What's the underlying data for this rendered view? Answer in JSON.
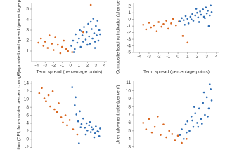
{
  "chart_data": [
    {
      "type": "scatter",
      "x_title": "Term spread (percentage points)",
      "y_title": "Corporate bond spread (percentage points)",
      "xlim": [
        -4.6,
        4.3
      ],
      "ylim": [
        0,
        5.6
      ],
      "xticks": [
        -4,
        -3,
        -2,
        -1,
        0,
        1,
        2,
        3,
        4
      ],
      "yticks": [
        1,
        2,
        3,
        4,
        5
      ],
      "series": [
        {
          "color": "#d9661f",
          "x": [
            -3.8,
            -3.5,
            -3.2,
            -3.0,
            -2.7,
            -2.5,
            -2.2,
            -2.0,
            -1.8,
            -1.5,
            -1.2,
            -1.0,
            -0.8,
            -0.5,
            -0.3,
            0.2,
            1.5,
            2.4
          ],
          "y": [
            1.8,
            2.2,
            1.5,
            1.9,
            1.3,
            2.5,
            1.7,
            1.1,
            2.3,
            1.6,
            0.8,
            1.4,
            2.0,
            1.2,
            1.0,
            0.9,
            2.8,
            5.4
          ]
        },
        {
          "color": "#2e6db4",
          "x": [
            0.1,
            0.3,
            0.5,
            0.6,
            0.8,
            1.0,
            1.1,
            1.2,
            1.4,
            1.5,
            1.6,
            1.8,
            1.9,
            2.0,
            2.1,
            2.2,
            2.3,
            2.5,
            2.6,
            2.7,
            2.8,
            2.9,
            3.0,
            3.1,
            3.2,
            3.3,
            3.4,
            3.5,
            0.4,
            1.3,
            2.4,
            2.9
          ],
          "y": [
            1.5,
            2.0,
            1.2,
            2.6,
            1.8,
            2.2,
            3.0,
            1.4,
            2.5,
            1.9,
            3.3,
            2.1,
            2.8,
            1.6,
            3.6,
            2.4,
            1.7,
            3.1,
            2.2,
            4.1,
            2.7,
            1.9,
            3.4,
            2.5,
            3.9,
            2.0,
            3.0,
            2.6,
            0.9,
            2.9,
            3.8,
            1.3
          ]
        }
      ]
    },
    {
      "type": "scatter",
      "x_title": "Term spread (percentage points)",
      "y_title": "Composite leading indicator (change, percent)",
      "xlim": [
        -4.6,
        4.3
      ],
      "ylim": [
        -5,
        2.5
      ],
      "xticks": [
        -4,
        -3,
        -2,
        -1,
        0,
        1,
        2,
        3,
        4
      ],
      "yticks": [
        2,
        1,
        0,
        -1,
        -2,
        -3,
        -4,
        -5
      ],
      "series": [
        {
          "color": "#d9661f",
          "x": [
            -3.6,
            -3.3,
            -3.0,
            -2.8,
            -2.5,
            -2.2,
            -2.0,
            -1.7,
            -1.5,
            -1.2,
            -1.0,
            -0.7,
            -0.5,
            -0.2,
            0.1,
            0.5,
            1.0
          ],
          "y": [
            -0.8,
            -1.5,
            -0.5,
            -1.2,
            -0.9,
            -1.8,
            -0.4,
            -1.1,
            -0.7,
            -0.2,
            -1.4,
            -0.6,
            0.1,
            -0.9,
            -0.3,
            -2.5,
            -3.5
          ]
        },
        {
          "color": "#2e6db4",
          "x": [
            0.2,
            0.4,
            0.6,
            0.8,
            1.0,
            1.1,
            1.3,
            1.5,
            1.6,
            1.8,
            2.0,
            2.1,
            2.3,
            2.4,
            2.6,
            2.7,
            2.9,
            3.0,
            3.1,
            3.3,
            3.4,
            3.5,
            0.7,
            1.4,
            2.2,
            2.8,
            3.2,
            1.9
          ],
          "y": [
            -0.3,
            0.2,
            -0.1,
            0.5,
            0.1,
            -0.6,
            0.4,
            0.8,
            -0.2,
            0.6,
            1.0,
            0.3,
            1.2,
            0.7,
            1.5,
            0.4,
            1.8,
            0.9,
            1.3,
            0.6,
            2.1,
            1.1,
            -0.8,
            0.0,
            -0.4,
            0.2,
            -1.0,
            1.6
          ]
        }
      ]
    },
    {
      "type": "scatter",
      "y_title": "Inflation (CPI, four-quarter percent change)",
      "xlim": [
        -4.6,
        4.3
      ],
      "ylim": [
        -2.3,
        14.5
      ],
      "yticks": [
        14,
        12,
        10,
        8,
        6,
        4,
        2,
        0,
        -2
      ],
      "series": [
        {
          "color": "#d9661f",
          "x": [
            -3.7,
            -3.4,
            -3.1,
            -2.9,
            -2.6,
            -2.4,
            -2.1,
            -1.9,
            -1.6,
            -1.4,
            -1.1,
            -0.9,
            -0.6,
            -0.4,
            -0.1,
            0.3,
            0.8
          ],
          "y": [
            11.5,
            12.8,
            10.2,
            9.5,
            11.0,
            8.2,
            12.0,
            7.5,
            6.8,
            9.0,
            5.5,
            4.2,
            6.0,
            3.5,
            4.8,
            2.5,
            1.2
          ]
        },
        {
          "color": "#2e6db4",
          "x": [
            0.2,
            0.5,
            0.7,
            0.9,
            1.1,
            1.3,
            1.5,
            1.7,
            1.9,
            2.0,
            2.2,
            2.4,
            2.5,
            2.7,
            2.9,
            3.0,
            3.2,
            3.4,
            3.5,
            0.6,
            1.2,
            1.8,
            2.3,
            2.8,
            3.3,
            1.0,
            2.6
          ],
          "y": [
            13.0,
            8.5,
            6.2,
            4.5,
            7.0,
            3.8,
            5.2,
            2.9,
            4.0,
            2.2,
            3.5,
            1.8,
            3.0,
            2.5,
            1.5,
            3.2,
            2.0,
            0.8,
            2.7,
            10.5,
            3.0,
            1.2,
            4.3,
            0.5,
            1.9,
            -1.0,
            2.4
          ]
        }
      ]
    },
    {
      "type": "scatter",
      "y_title": "Unemployment rate (percent)",
      "xlim": [
        -4.6,
        4.3
      ],
      "ylim": [
        2.8,
        11.2
      ],
      "yticks": [
        11,
        10,
        9,
        8,
        7,
        6,
        5,
        4,
        3
      ],
      "series": [
        {
          "color": "#d9661f",
          "x": [
            -3.6,
            -3.3,
            -3.0,
            -2.7,
            -2.4,
            -2.1,
            -1.8,
            -1.5,
            -1.2,
            -0.9,
            -0.6,
            -0.3,
            0.0,
            0.4,
            0.9
          ],
          "y": [
            6.0,
            5.2,
            6.5,
            4.8,
            5.5,
            6.8,
            4.5,
            5.8,
            4.2,
            5.0,
            4.6,
            3.8,
            4.4,
            3.5,
            4.0
          ]
        },
        {
          "color": "#2e6db4",
          "x": [
            0.2,
            0.4,
            0.6,
            0.8,
            1.0,
            1.2,
            1.4,
            1.6,
            1.8,
            2.0,
            2.2,
            2.4,
            2.6,
            2.8,
            3.0,
            3.2,
            3.4,
            3.5,
            0.9,
            1.5,
            2.1,
            2.7,
            3.1,
            3.3,
            1.7,
            2.5
          ],
          "y": [
            4.5,
            5.2,
            4.0,
            5.8,
            6.2,
            5.0,
            6.8,
            5.5,
            7.2,
            6.0,
            7.8,
            6.5,
            8.5,
            7.0,
            9.2,
            7.8,
            10.2,
            8.8,
            4.8,
            6.3,
            5.5,
            9.8,
            6.8,
            10.8,
            8.0,
            5.9
          ]
        }
      ]
    }
  ]
}
